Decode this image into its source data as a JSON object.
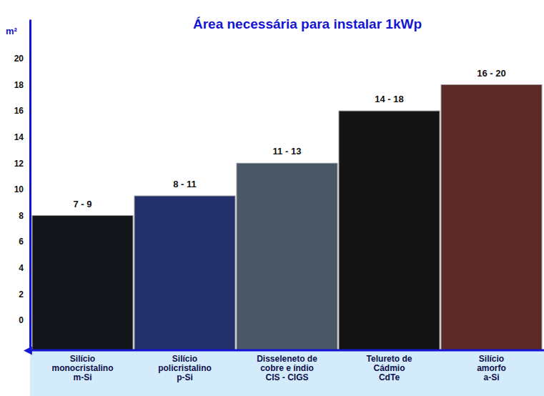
{
  "chart_data": {
    "type": "bar",
    "title": "Área necessária para instalar 1kWp",
    "y_label": "m²",
    "categories": [
      "Silício\nmonocristalino\nm-Si",
      "Silício\npolicristalino\np-Si",
      "Disseleneto de\ncobre e índio\nCIS - CIGS",
      "Telureto de\nCádmio\nCdTe",
      "Silício\namorfo\na-Si"
    ],
    "values": [
      8,
      9.5,
      12,
      16,
      18
    ],
    "value_labels": [
      "7 - 9",
      "8 - 11",
      "11 - 13",
      "14 - 18",
      "16 - 20"
    ],
    "colors": [
      "#15151c",
      "#24306a",
      "#4a5866",
      "#141414",
      "#5b2a26"
    ],
    "ylim": [
      -2.3,
      23
    ],
    "yticks": [
      0,
      2,
      4,
      6,
      8,
      10,
      12,
      14,
      16,
      18,
      20
    ],
    "grid": false,
    "data_labels": true
  }
}
